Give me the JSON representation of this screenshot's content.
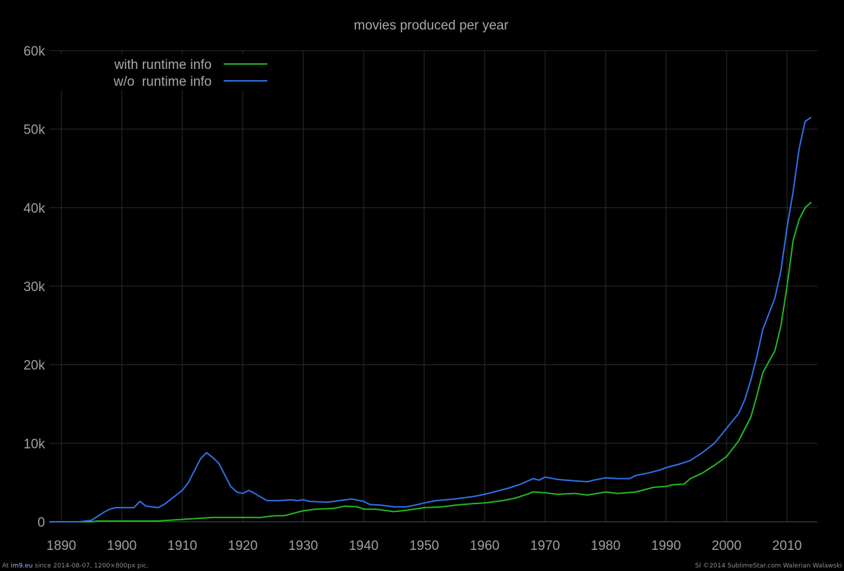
{
  "chart_data": {
    "type": "line",
    "title": "movies produced per year",
    "xlabel": "",
    "ylabel": "",
    "xlim": [
      1888,
      2015
    ],
    "ylim": [
      0,
      60000
    ],
    "x_ticks": [
      1890,
      1900,
      1910,
      1920,
      1930,
      1940,
      1950,
      1960,
      1970,
      1980,
      1990,
      2000,
      2010
    ],
    "y_ticks": [
      0,
      10000,
      20000,
      30000,
      40000,
      50000,
      60000
    ],
    "y_tick_labels": [
      "0",
      "10k",
      "20k",
      "30k",
      "40k",
      "50k",
      "60k"
    ],
    "grid": true,
    "legend": "top-left",
    "series": [
      {
        "name": "with runtime info",
        "color": "#22b822",
        "points": [
          [
            1888,
            0
          ],
          [
            1895,
            0
          ],
          [
            1896,
            100
          ],
          [
            1900,
            100
          ],
          [
            1906,
            100
          ],
          [
            1908,
            200
          ],
          [
            1910,
            300
          ],
          [
            1912,
            400
          ],
          [
            1915,
            550
          ],
          [
            1918,
            550
          ],
          [
            1920,
            550
          ],
          [
            1923,
            550
          ],
          [
            1925,
            750
          ],
          [
            1927,
            800
          ],
          [
            1928,
            1000
          ],
          [
            1930,
            1400
          ],
          [
            1932,
            1600
          ],
          [
            1935,
            1700
          ],
          [
            1937,
            2000
          ],
          [
            1939,
            1900
          ],
          [
            1940,
            1600
          ],
          [
            1942,
            1600
          ],
          [
            1945,
            1300
          ],
          [
            1947,
            1450
          ],
          [
            1950,
            1800
          ],
          [
            1953,
            1900
          ],
          [
            1955,
            2100
          ],
          [
            1958,
            2300
          ],
          [
            1960,
            2400
          ],
          [
            1963,
            2700
          ],
          [
            1965,
            3000
          ],
          [
            1967,
            3500
          ],
          [
            1968,
            3800
          ],
          [
            1970,
            3700
          ],
          [
            1972,
            3500
          ],
          [
            1975,
            3600
          ],
          [
            1977,
            3400
          ],
          [
            1980,
            3800
          ],
          [
            1982,
            3600
          ],
          [
            1985,
            3800
          ],
          [
            1988,
            4400
          ],
          [
            1990,
            4500
          ],
          [
            1991,
            4700
          ],
          [
            1993,
            4800
          ],
          [
            1994,
            5500
          ],
          [
            1996,
            6200
          ],
          [
            1998,
            7200
          ],
          [
            2000,
            8300
          ],
          [
            2002,
            10300
          ],
          [
            2004,
            13300
          ],
          [
            2005,
            16000
          ],
          [
            2006,
            19000
          ],
          [
            2008,
            21800
          ],
          [
            2009,
            25000
          ],
          [
            2010,
            30000
          ],
          [
            2011,
            35800
          ],
          [
            2012,
            38500
          ],
          [
            2013,
            40000
          ],
          [
            2014,
            40700
          ]
        ]
      },
      {
        "name": "w/o  runtime info",
        "color": "#2f72e6",
        "points": [
          [
            1888,
            0
          ],
          [
            1893,
            0
          ],
          [
            1895,
            200
          ],
          [
            1897,
            1200
          ],
          [
            1898,
            1600
          ],
          [
            1899,
            1800
          ],
          [
            1902,
            1800
          ],
          [
            1903,
            2600
          ],
          [
            1904,
            2000
          ],
          [
            1906,
            1800
          ],
          [
            1907,
            2200
          ],
          [
            1908,
            2800
          ],
          [
            1909,
            3400
          ],
          [
            1910,
            4000
          ],
          [
            1911,
            5000
          ],
          [
            1912,
            6500
          ],
          [
            1913,
            8000
          ],
          [
            1914,
            8800
          ],
          [
            1915,
            8200
          ],
          [
            1916,
            7500
          ],
          [
            1917,
            6000
          ],
          [
            1918,
            4500
          ],
          [
            1919,
            3800
          ],
          [
            1920,
            3600
          ],
          [
            1921,
            4000
          ],
          [
            1922,
            3600
          ],
          [
            1924,
            2700
          ],
          [
            1926,
            2700
          ],
          [
            1928,
            2800
          ],
          [
            1929,
            2700
          ],
          [
            1930,
            2800
          ],
          [
            1931,
            2600
          ],
          [
            1934,
            2500
          ],
          [
            1936,
            2700
          ],
          [
            1938,
            2900
          ],
          [
            1940,
            2600
          ],
          [
            1941,
            2200
          ],
          [
            1943,
            2100
          ],
          [
            1945,
            1900
          ],
          [
            1947,
            1900
          ],
          [
            1949,
            2200
          ],
          [
            1950,
            2400
          ],
          [
            1952,
            2700
          ],
          [
            1955,
            2900
          ],
          [
            1958,
            3200
          ],
          [
            1960,
            3500
          ],
          [
            1962,
            3900
          ],
          [
            1964,
            4300
          ],
          [
            1966,
            4800
          ],
          [
            1968,
            5500
          ],
          [
            1969,
            5300
          ],
          [
            1970,
            5700
          ],
          [
            1972,
            5400
          ],
          [
            1975,
            5200
          ],
          [
            1977,
            5100
          ],
          [
            1978,
            5300
          ],
          [
            1980,
            5600
          ],
          [
            1982,
            5500
          ],
          [
            1984,
            5500
          ],
          [
            1985,
            5900
          ],
          [
            1987,
            6200
          ],
          [
            1989,
            6600
          ],
          [
            1990,
            6900
          ],
          [
            1992,
            7300
          ],
          [
            1994,
            7800
          ],
          [
            1996,
            8800
          ],
          [
            1998,
            10000
          ],
          [
            2000,
            11900
          ],
          [
            2002,
            13800
          ],
          [
            2003,
            15500
          ],
          [
            2004,
            18000
          ],
          [
            2005,
            21000
          ],
          [
            2006,
            24500
          ],
          [
            2008,
            28500
          ],
          [
            2009,
            32000
          ],
          [
            2010,
            37500
          ],
          [
            2011,
            42000
          ],
          [
            2012,
            47500
          ],
          [
            2013,
            51000
          ],
          [
            2014,
            51500
          ]
        ]
      }
    ]
  },
  "footer": {
    "left_prefix": "At ",
    "left_link": "im9.eu",
    "left_suffix": " since 2014-08-07, 1200×800px pic.",
    "right": "SI ©2014 SublimeStar.com Walerian Walawski"
  }
}
